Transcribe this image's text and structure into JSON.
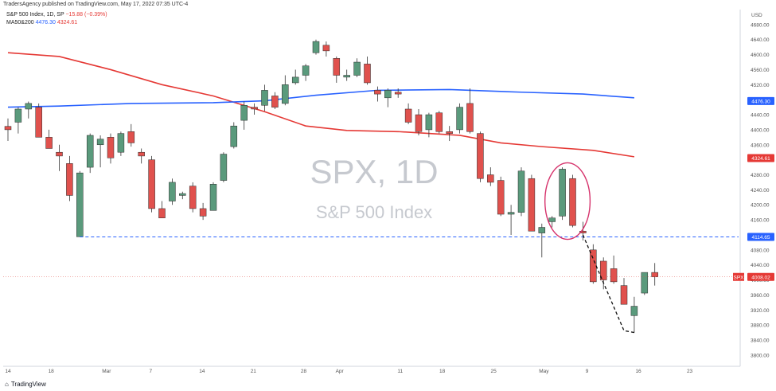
{
  "header": {
    "caption": "TradersAgency published on TradingView.com, May 17, 2022 07:35 UTC-4",
    "symbol_line_name": "S&P 500 Index, 1D, SP",
    "symbol_line_change": "−15.88 (−0.39%)",
    "ma_line_label": "MA50&200",
    "ma_value_1": "4476.30",
    "ma_value_2": "4324.61"
  },
  "watermark": {
    "ticker": "SPX, 1D",
    "name": "S&P 500 Index"
  },
  "footer": {
    "brand_icon": "tradingview-logo-icon",
    "brand_text": "TradingView"
  },
  "price_axis": {
    "currency": "USD",
    "tick_labels": [
      "4680.00",
      "4640.00",
      "4600.00",
      "4560.00",
      "4520.00",
      "4480.00",
      "4440.00",
      "4400.00",
      "4360.00",
      "4320.00",
      "4280.00",
      "4240.00",
      "4200.00",
      "4160.00",
      "4120.00",
      "4080.00",
      "4040.00",
      "4000.00",
      "3960.00",
      "3920.00",
      "3880.00",
      "3840.00",
      "3800.00"
    ],
    "badges": [
      {
        "text": "4476.30",
        "color": "#2962ff",
        "value": 4476.3
      },
      {
        "text": "4324.61",
        "color": "#e53935",
        "value": 4324.61
      },
      {
        "text": "4114.65",
        "color": "#2962ff",
        "value": 4114.65
      },
      {
        "label": "SPX",
        "text": "4008.02",
        "color": "#e53935",
        "value": 4008.02
      }
    ]
  },
  "time_axis": {
    "labels": [
      "14",
      "18",
      "Mar",
      "7",
      "14",
      "21",
      "28",
      "Apr",
      "11",
      "18",
      "25",
      "May",
      "9",
      "16",
      "23"
    ]
  },
  "colors": {
    "up": "#5a9a7c",
    "down": "#e0514d",
    "ma50": "#e53935",
    "ma200": "#2962ff",
    "support": "#2962ff",
    "annotation": "#d6336c"
  },
  "chart_data": {
    "type": "candlestick",
    "title": "S&P 500 Index, 1D, SP",
    "ylim": [
      3770,
      4720
    ],
    "support_level": 4114.65,
    "last_price": 4008.02,
    "candles": [
      {
        "o": 4409,
        "h": 4430,
        "l": 4370,
        "c": 4400
      },
      {
        "o": 4420,
        "h": 4460,
        "l": 4390,
        "c": 4455
      },
      {
        "o": 4455,
        "h": 4475,
        "l": 4430,
        "c": 4470
      },
      {
        "o": 4460,
        "h": 4470,
        "l": 4380,
        "c": 4380
      },
      {
        "o": 4380,
        "h": 4400,
        "l": 4350,
        "c": 4350
      },
      {
        "o": 4340,
        "h": 4360,
        "l": 4290,
        "c": 4330
      },
      {
        "o": 4310,
        "h": 4330,
        "l": 4210,
        "c": 4225
      },
      {
        "o": 4115,
        "h": 4290,
        "l": 4115,
        "c": 4285
      },
      {
        "o": 4300,
        "h": 4390,
        "l": 4285,
        "c": 4385
      },
      {
        "o": 4360,
        "h": 4385,
        "l": 4300,
        "c": 4375
      },
      {
        "o": 4380,
        "h": 4390,
        "l": 4310,
        "c": 4325
      },
      {
        "o": 4340,
        "h": 4395,
        "l": 4330,
        "c": 4390
      },
      {
        "o": 4395,
        "h": 4415,
        "l": 4355,
        "c": 4365
      },
      {
        "o": 4340,
        "h": 4350,
        "l": 4310,
        "c": 4330
      },
      {
        "o": 4320,
        "h": 4330,
        "l": 4180,
        "c": 4190
      },
      {
        "o": 4190,
        "h": 4210,
        "l": 4165,
        "c": 4165
      },
      {
        "o": 4210,
        "h": 4270,
        "l": 4200,
        "c": 4260
      },
      {
        "o": 4225,
        "h": 4235,
        "l": 4215,
        "c": 4230
      },
      {
        "o": 4250,
        "h": 4260,
        "l": 4180,
        "c": 4190
      },
      {
        "o": 4190,
        "h": 4205,
        "l": 4160,
        "c": 4170
      },
      {
        "o": 4185,
        "h": 4260,
        "l": 4185,
        "c": 4255
      },
      {
        "o": 4265,
        "h": 4340,
        "l": 4260,
        "c": 4335
      },
      {
        "o": 4355,
        "h": 4420,
        "l": 4350,
        "c": 4410
      },
      {
        "o": 4425,
        "h": 4475,
        "l": 4400,
        "c": 4465
      },
      {
        "o": 4460,
        "h": 4470,
        "l": 4440,
        "c": 4455
      },
      {
        "o": 4465,
        "h": 4520,
        "l": 4450,
        "c": 4505
      },
      {
        "o": 4490,
        "h": 4500,
        "l": 4455,
        "c": 4460
      },
      {
        "o": 4470,
        "h": 4545,
        "l": 4465,
        "c": 4520
      },
      {
        "o": 4525,
        "h": 4560,
        "l": 4520,
        "c": 4540
      },
      {
        "o": 4545,
        "h": 4575,
        "l": 4530,
        "c": 4570
      },
      {
        "o": 4605,
        "h": 4640,
        "l": 4600,
        "c": 4635
      },
      {
        "o": 4625,
        "h": 4635,
        "l": 4595,
        "c": 4610
      },
      {
        "o": 4590,
        "h": 4595,
        "l": 4525,
        "c": 4545
      },
      {
        "o": 4540,
        "h": 4560,
        "l": 4530,
        "c": 4545
      },
      {
        "o": 4545,
        "h": 4590,
        "l": 4540,
        "c": 4580
      },
      {
        "o": 4575,
        "h": 4595,
        "l": 4520,
        "c": 4525
      },
      {
        "o": 4505,
        "h": 4515,
        "l": 4475,
        "c": 4495
      },
      {
        "o": 4485,
        "h": 4510,
        "l": 4460,
        "c": 4505
      },
      {
        "o": 4500,
        "h": 4510,
        "l": 4485,
        "c": 4495
      },
      {
        "o": 4455,
        "h": 4470,
        "l": 4415,
        "c": 4420
      },
      {
        "o": 4440,
        "h": 4455,
        "l": 4385,
        "c": 4395
      },
      {
        "o": 4400,
        "h": 4445,
        "l": 4380,
        "c": 4440
      },
      {
        "o": 4445,
        "h": 4450,
        "l": 4390,
        "c": 4395
      },
      {
        "o": 4395,
        "h": 4410,
        "l": 4370,
        "c": 4390
      },
      {
        "o": 4400,
        "h": 4470,
        "l": 4390,
        "c": 4460
      },
      {
        "o": 4470,
        "h": 4510,
        "l": 4390,
        "c": 4395
      },
      {
        "o": 4390,
        "h": 4395,
        "l": 4260,
        "c": 4270
      },
      {
        "o": 4280,
        "h": 4300,
        "l": 4250,
        "c": 4260
      },
      {
        "o": 4265,
        "h": 4275,
        "l": 4170,
        "c": 4175
      },
      {
        "o": 4175,
        "h": 4200,
        "l": 4120,
        "c": 4180
      },
      {
        "o": 4180,
        "h": 4300,
        "l": 4170,
        "c": 4290
      },
      {
        "o": 4270,
        "h": 4280,
        "l": 4130,
        "c": 4130
      },
      {
        "o": 4125,
        "h": 4150,
        "l": 4060,
        "c": 4140
      },
      {
        "o": 4155,
        "h": 4170,
        "l": 4140,
        "c": 4165
      },
      {
        "o": 4170,
        "h": 4300,
        "l": 4160,
        "c": 4295
      },
      {
        "o": 4270,
        "h": 4280,
        "l": 4140,
        "c": 4145
      },
      {
        "o": 4130,
        "h": 4155,
        "l": 4105,
        "c": 4125
      },
      {
        "o": 4080,
        "h": 4095,
        "l": 3990,
        "c": 3995
      },
      {
        "o": 4050,
        "h": 4060,
        "l": 3975,
        "c": 4000
      },
      {
        "o": 4030,
        "h": 4065,
        "l": 3990,
        "c": 3995
      },
      {
        "o": 3985,
        "h": 4005,
        "l": 3935,
        "c": 3935
      },
      {
        "o": 3905,
        "h": 3955,
        "l": 3860,
        "c": 3930
      },
      {
        "o": 3965,
        "h": 4020,
        "l": 3960,
        "c": 4020
      },
      {
        "o": 4020,
        "h": 4045,
        "l": 3985,
        "c": 4008
      }
    ],
    "moving_averages": [
      {
        "name": "MA50",
        "color": "#e53935",
        "points": [
          [
            0,
            4605
          ],
          [
            5,
            4595
          ],
          [
            10,
            4560
          ],
          [
            15,
            4520
          ],
          [
            20,
            4490
          ],
          [
            25,
            4448
          ],
          [
            29,
            4410
          ],
          [
            33,
            4398
          ],
          [
            38,
            4395
          ],
          [
            44,
            4385
          ],
          [
            48,
            4365
          ],
          [
            52,
            4355
          ],
          [
            57,
            4345
          ],
          [
            61,
            4328
          ]
        ]
      },
      {
        "name": "MA200",
        "color": "#2962ff",
        "points": [
          [
            0,
            4460
          ],
          [
            5,
            4463
          ],
          [
            12,
            4470
          ],
          [
            20,
            4472
          ],
          [
            25,
            4477
          ],
          [
            30,
            4492
          ],
          [
            36,
            4505
          ],
          [
            43,
            4507
          ],
          [
            50,
            4500
          ],
          [
            56,
            4495
          ],
          [
            61,
            4485
          ]
        ]
      }
    ],
    "annotations": [
      {
        "type": "ellipse",
        "from_index": 53,
        "to_index": 56,
        "top": 4295,
        "bottom": 4125
      },
      {
        "type": "dashed_line",
        "points": [
          [
            56,
            4120
          ],
          [
            60,
            3865
          ],
          [
            61,
            3860
          ]
        ]
      }
    ]
  }
}
